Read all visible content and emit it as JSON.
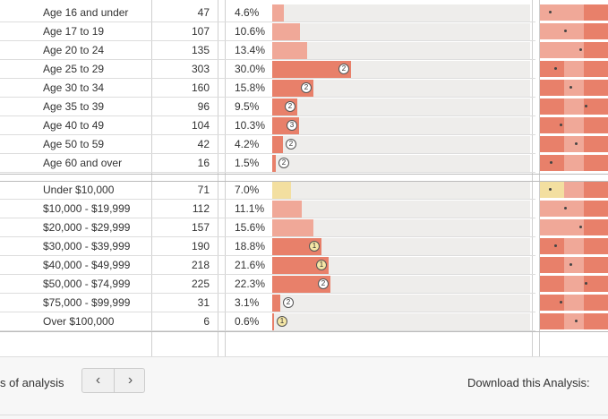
{
  "colors": {
    "bar_salmon": "#e8806a",
    "bar_light_salmon": "#f0a898",
    "bar_yellow": "#f3dfa0",
    "track": "#eeedeb"
  },
  "age_rows": [
    {
      "label": "Age 16 and under",
      "count": "47",
      "pct": "4.6%",
      "fill": 0.046,
      "tone": "light",
      "badge": ""
    },
    {
      "label": "Age 17 to 19",
      "count": "107",
      "pct": "10.6%",
      "fill": 0.106,
      "tone": "light",
      "badge": ""
    },
    {
      "label": "Age 20 to 24",
      "count": "135",
      "pct": "13.4%",
      "fill": 0.134,
      "tone": "light",
      "badge": ""
    },
    {
      "label": "Age 25 to 29",
      "count": "303",
      "pct": "30.0%",
      "fill": 0.3,
      "tone": "salmon",
      "badge": "2"
    },
    {
      "label": "Age 30 to 34",
      "count": "160",
      "pct": "15.8%",
      "fill": 0.158,
      "tone": "salmon",
      "badge": "2"
    },
    {
      "label": "Age 35 to 39",
      "count": "96",
      "pct": "9.5%",
      "fill": 0.095,
      "tone": "salmon",
      "badge": "2"
    },
    {
      "label": "Age 40 to 49",
      "count": "104",
      "pct": "10.3%",
      "fill": 0.103,
      "tone": "salmon",
      "badge": "3"
    },
    {
      "label": "Age 50 to 59",
      "count": "42",
      "pct": "4.2%",
      "fill": 0.042,
      "tone": "salmon",
      "badge": "2"
    },
    {
      "label": "Age 60 and over",
      "count": "16",
      "pct": "1.5%",
      "fill": 0.015,
      "tone": "salmon",
      "badge": "2"
    }
  ],
  "income_rows": [
    {
      "label": "Under $10,000",
      "count": "71",
      "pct": "7.0%",
      "fill": 0.07,
      "tone": "yellow",
      "badge": ""
    },
    {
      "label": "$10,000 - $19,999",
      "count": "112",
      "pct": "11.1%",
      "fill": 0.111,
      "tone": "light",
      "badge": ""
    },
    {
      "label": "$20,000 - $29,999",
      "count": "157",
      "pct": "15.6%",
      "fill": 0.156,
      "tone": "light",
      "badge": ""
    },
    {
      "label": "$30,000 - $39,999",
      "count": "190",
      "pct": "18.8%",
      "fill": 0.188,
      "tone": "salmon",
      "badge": "1",
      "badge_color": "yellow"
    },
    {
      "label": "$40,000 - $49,999",
      "count": "218",
      "pct": "21.6%",
      "fill": 0.216,
      "tone": "salmon",
      "badge": "1",
      "badge_color": "yellow"
    },
    {
      "label": "$50,000 - $74,999",
      "count": "225",
      "pct": "22.3%",
      "fill": 0.223,
      "tone": "salmon",
      "badge": "2"
    },
    {
      "label": "$75,000 - $99,999",
      "count": "31",
      "pct": "3.1%",
      "fill": 0.031,
      "tone": "salmon",
      "badge": "2"
    },
    {
      "label": "Over $100,000",
      "count": "6",
      "pct": "0.6%",
      "fill": 0.006,
      "tone": "salmon",
      "badge": "1",
      "badge_color": "yellow"
    }
  ],
  "footer": {
    "left_text": "s of analysis",
    "prev_icon": "chevron-left-icon",
    "next_icon": "chevron-right-icon",
    "prev_glyph": "‹",
    "next_glyph": "›",
    "download_label": "Download this Analysis:"
  }
}
